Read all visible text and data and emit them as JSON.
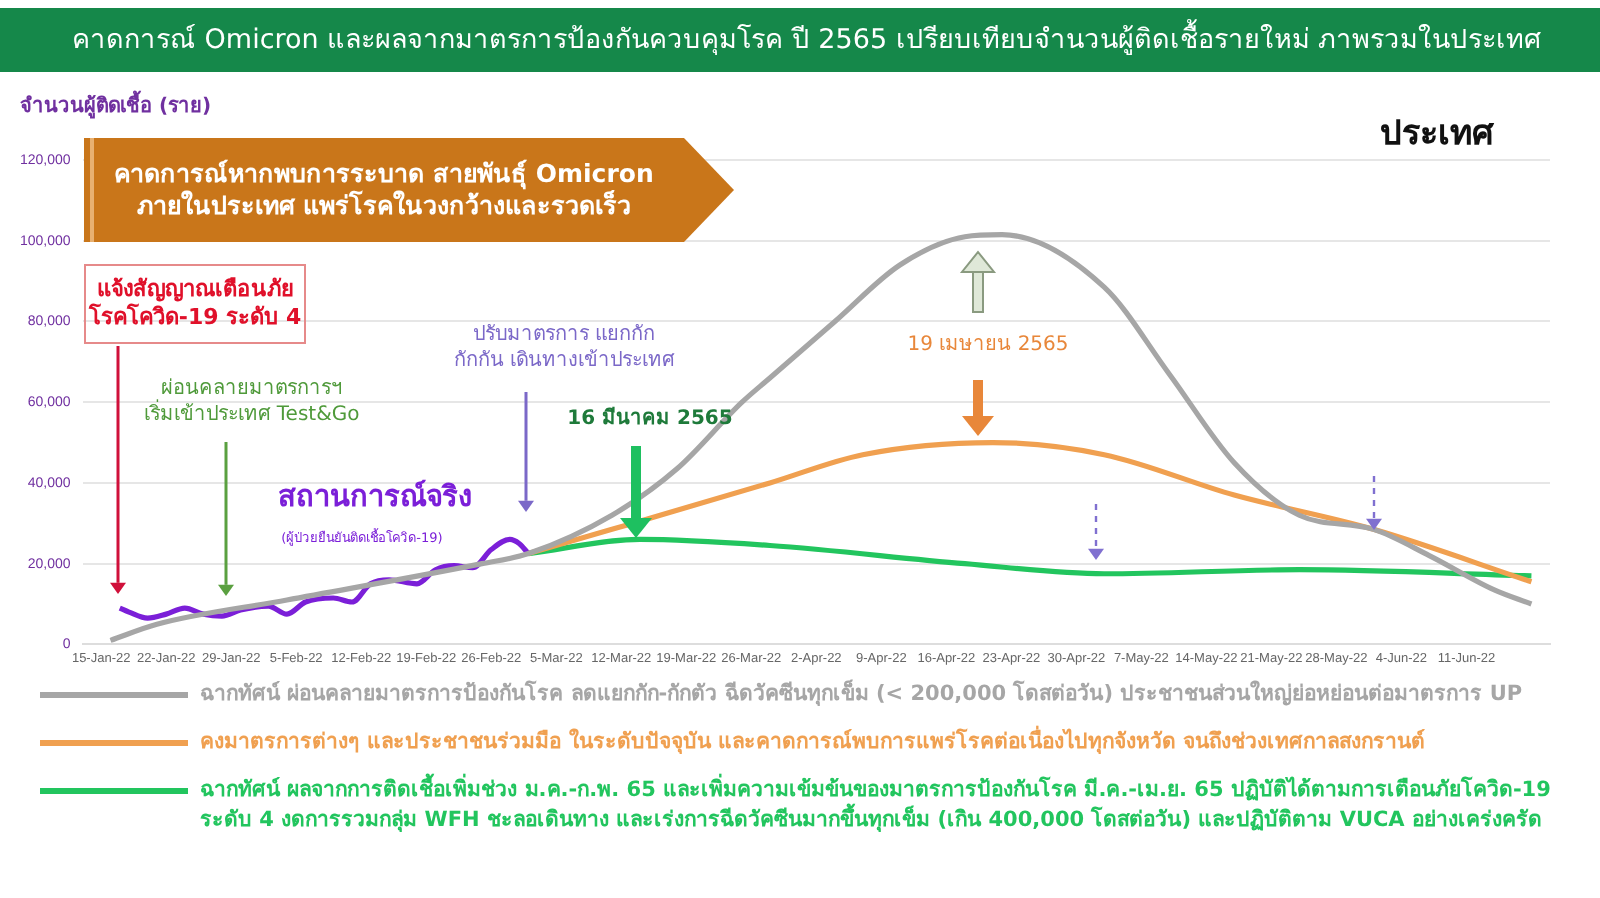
{
  "chart_data": {
    "type": "line",
    "title": "คาดการณ์ Omicron และผลจากมาตรการป้องกันควบคุมโรค ปี 2565 เปรียบเทียบจำนวนผู้ติดเชื้อรายใหม่ ภาพรวมในประเทศ",
    "subtitle": "ประเทศ",
    "ylabel": "จำนวนผู้ติดเชื้อ (ราย)",
    "xlim": [
      "--01-13",
      "--06-20"
    ],
    "xticks": [
      {
        "value": "--01-15",
        "label": "15-Jan-22"
      },
      {
        "value": "--01-22",
        "label": "22-Jan-22"
      },
      {
        "value": "--01-29",
        "label": "29-Jan-22"
      },
      {
        "value": "--02-05",
        "label": "5-Feb-22"
      },
      {
        "value": "--02-12",
        "label": "12-Feb-22"
      },
      {
        "value": "--02-19",
        "label": "19-Feb-22"
      },
      {
        "value": "--02-26",
        "label": "26-Feb-22"
      },
      {
        "value": "--03-05",
        "label": "5-Mar-22"
      },
      {
        "value": "--03-12",
        "label": "12-Mar-22"
      },
      {
        "value": "--03-19",
        "label": "19-Mar-22"
      },
      {
        "value": "--03-26",
        "label": "26-Mar-22"
      },
      {
        "value": "--04-02",
        "label": "2-Apr-22"
      },
      {
        "value": "--04-09",
        "label": "9-Apr-22"
      },
      {
        "value": "--04-16",
        "label": "16-Apr-22"
      },
      {
        "value": "--04-23",
        "label": "23-Apr-22"
      },
      {
        "value": "--04-30",
        "label": "30-Apr-22"
      },
      {
        "value": "--05-07",
        "label": "7-May-22"
      },
      {
        "value": "--05-14",
        "label": "14-May-22"
      },
      {
        "value": "--05-21",
        "label": "21-May-22"
      },
      {
        "value": "--05-28",
        "label": "28-May-22"
      },
      {
        "value": "--06-04",
        "label": "4-Jun-22"
      },
      {
        "value": "--06-11",
        "label": "11-Jun-22"
      }
    ],
    "ylim": [
      0,
      120000
    ],
    "yticks": [
      0,
      {
        "value": 20000,
        "label": "20,000"
      },
      {
        "value": 40000,
        "label": "40,000"
      },
      {
        "value": 60000,
        "label": "60,000"
      },
      {
        "value": 80000,
        "label": "80,000"
      },
      {
        "value": 100000,
        "label": "100,000"
      },
      {
        "value": 120000,
        "label": "120,000"
      }
    ],
    "grid": "y",
    "legend": "bottom",
    "series": [
      {
        "name": "ฉากทัศน์ ผ่อนคลายมาตรการป้องกันโรค ลดแยกกัก-กักตัว ฉีดวัคซีนทุกเข็ม (< 200,000 โดสต่อวัน) ประชาชนส่วนใหญ่ย่อหย่อนต่อมาตรการ UP",
        "color": "#a6a6a6",
        "x": [
          "--01-16",
          "--01-21",
          "--02-04",
          "--02-25",
          "--03-02",
          "--03-11",
          "--03-18",
          "--03-25",
          "--03-28",
          "--04-04",
          "--04-11",
          "--04-18",
          "--04-22",
          "--05-03",
          "--05-10",
          "--05-17",
          "--05-24",
          "--06-01",
          "--06-07",
          "--06-14",
          "--06-18"
        ],
        "values": [
          1000,
          5000,
          11000,
          20000,
          22500,
          32000,
          43500,
          60000,
          66000,
          80000,
          94000,
          101000,
          101500,
          88500,
          67000,
          45000,
          32000,
          28500,
          22000,
          13500,
          10000
        ]
      },
      {
        "name": "คงมาตรการต่างๆ และประชาชนร่วมมือ ในระดับปัจจุบัน และคาดการณ์พบการแพร่โรคต่อเนื่องไปทุกจังหวัด จนถึงช่วงเทศกาลสงกรานต์",
        "color": "#f0a050",
        "x": [
          "--03-02",
          "--03-11",
          "--03-28",
          "--04-07",
          "--04-21",
          "--05-03",
          "--05-17",
          "--06-01",
          "--06-18"
        ],
        "values": [
          22500,
          28500,
          40000,
          47000,
          50000,
          47000,
          37000,
          28500,
          15500
        ]
      },
      {
        "name": "ฉากทัศน์ ผลจากการติดเชื้อเพิ่มช่วง ม.ค.-ก.พ. 65 และเพิ่มความเข้มข้นของมาตรการป้องกันโรค มี.ค.-เม.ย. 65 ปฏิบัติได้ตามการเตือนภัยโควิด-19 ระดับ 4 งดการรวมกลุ่ม WFH ชะลอเดินทาง และเร่งการฉีดวัคซีนมากขึ้นทุกเข็ม (เกิน 400,000 โดสต่อวัน) และปฏิบัติตาม VUCA อย่างเคร่งครัด",
        "color": "#22c55e",
        "x": [
          "--03-02",
          "--03-14",
          "--03-28",
          "--04-18",
          "--05-03",
          "--05-24",
          "--06-18"
        ],
        "values": [
          22500,
          26000,
          24500,
          20000,
          17500,
          18500,
          17000
        ]
      },
      {
        "color": "#7b1fd8",
        "x": [
          "--01-17",
          "--01-18",
          "--01-20",
          "--01-22",
          "--01-24",
          "--01-26",
          "--01-28",
          "--01-30",
          "--02-02",
          "--02-04",
          "--02-06",
          "--02-09",
          "--02-11",
          "--02-13",
          "--02-15",
          "--02-18",
          "--02-20",
          "--02-22",
          "--02-24",
          "--02-26",
          "--02-28",
          "--03-01",
          "--03-02"
        ],
        "values": [
          9000,
          8000,
          6500,
          7500,
          9000,
          7500,
          7000,
          8500,
          9500,
          7500,
          10500,
          11500,
          10500,
          15000,
          16000,
          15000,
          18500,
          19500,
          19000,
          23500,
          26000,
          25000,
          22500
        ]
      }
    ],
    "annotations": [
      "คาดการณ์หากพบการระบาด สายพันธุ์ Omicron\nภายในประเทศ แพร่โรคในวงกว้างและรวดเร็ว",
      "แจ้งสัญญาณเตือนภัย\nโรคโควิด-19 ระดับ 4",
      "ผ่อนคลายมาตรการฯ\nเริ่มเข้าประเทศ Test&Go",
      "ปรับมาตรการ แยกกัก\nกักกัน เดินทางเข้าประเทศ",
      "16 มีนาคม 2565",
      "19 เมษายน 2565",
      {
        "text": "สถานการณ์จริง",
        "x": "--02-15",
        "y": 16000
      },
      "(ผู้ป่วยยืนยันติดเชื้อโควิด-19)"
    ]
  }
}
